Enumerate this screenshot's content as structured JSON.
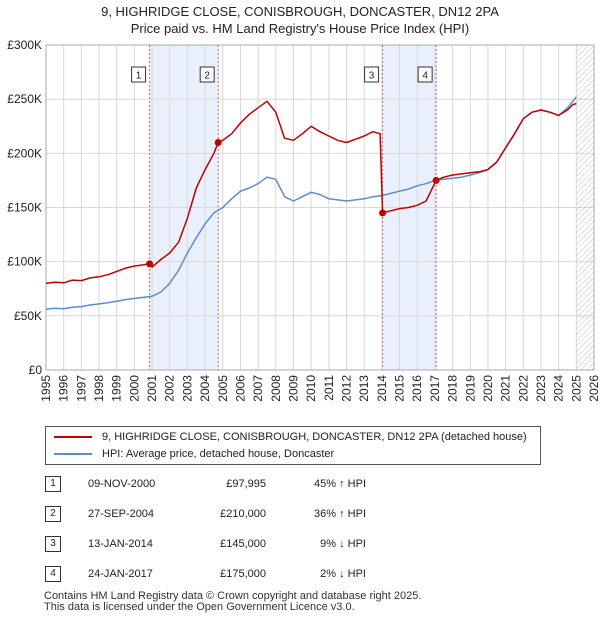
{
  "title": {
    "line1": "9, HIGHRIDGE CLOSE, CONISBROUGH, DONCASTER, DN12 2PA",
    "line2": "Price paid vs. HM Land Registry's House Price Index (HPI)"
  },
  "colors": {
    "property_line": "#c00000",
    "hpi_line": "#5b8ccc",
    "shade": "#eaf0fb",
    "vline": "#e06060",
    "grid": "#d8d8d8"
  },
  "chart_data": {
    "type": "line",
    "xlabel": "",
    "ylabel": "",
    "xlim": [
      1995,
      2026
    ],
    "ylim": [
      0,
      300000
    ],
    "x_ticks": [
      "1995",
      "1996",
      "1997",
      "1998",
      "1999",
      "2000",
      "2001",
      "2002",
      "2003",
      "2004",
      "2005",
      "2006",
      "2007",
      "2008",
      "2009",
      "2010",
      "2011",
      "2012",
      "2013",
      "2014",
      "2015",
      "2016",
      "2017",
      "2018",
      "2019",
      "2020",
      "2021",
      "2022",
      "2023",
      "2024",
      "2025",
      "2026"
    ],
    "y_ticks": [
      {
        "value": 0,
        "label": "£0"
      },
      {
        "value": 50000,
        "label": "£50K"
      },
      {
        "value": 100000,
        "label": "£100K"
      },
      {
        "value": 150000,
        "label": "£150K"
      },
      {
        "value": 200000,
        "label": "£200K"
      },
      {
        "value": 250000,
        "label": "£250K"
      },
      {
        "value": 300000,
        "label": "£300K"
      }
    ],
    "grid": true,
    "shaded_ranges": [
      [
        2000.86,
        2004.74
      ],
      [
        2014.04,
        2017.07
      ]
    ],
    "hatched_from": 2025.0,
    "series": [
      {
        "name": "9, HIGHRIDGE CLOSE, CONISBROUGH, DONCASTER, DN12 2PA (detached house)",
        "x": [
          1995.0,
          1995.5,
          1996.0,
          1996.5,
          1997.0,
          1997.5,
          1998.0,
          1998.5,
          1999.0,
          1999.5,
          2000.0,
          2000.5,
          2000.86,
          2001.0,
          2001.5,
          2002.0,
          2002.5,
          2003.0,
          2003.5,
          2004.0,
          2004.5,
          2004.74,
          2005.0,
          2005.5,
          2006.0,
          2006.5,
          2007.0,
          2007.5,
          2008.0,
          2008.5,
          2009.0,
          2009.5,
          2010.0,
          2010.5,
          2011.0,
          2011.5,
          2012.0,
          2012.5,
          2013.0,
          2013.5,
          2013.9,
          2014.04,
          2014.5,
          2015.0,
          2015.5,
          2016.0,
          2016.5,
          2017.07,
          2017.5,
          2018.0,
          2018.5,
          2019.0,
          2019.5,
          2020.0,
          2020.5,
          2021.0,
          2021.5,
          2022.0,
          2022.5,
          2023.0,
          2023.5,
          2024.0,
          2024.5,
          2024.8,
          2025.0
        ],
        "values": [
          80000,
          81000,
          80500,
          83000,
          82500,
          85000,
          86000,
          88000,
          91000,
          94000,
          96000,
          97000,
          97995,
          95000,
          102000,
          108000,
          118000,
          140000,
          168000,
          185000,
          200000,
          210000,
          212000,
          218000,
          228000,
          236000,
          242000,
          248000,
          238000,
          214000,
          212000,
          218000,
          225000,
          220000,
          216000,
          212000,
          210000,
          213000,
          216000,
          220000,
          218000,
          145000,
          147000,
          149000,
          150000,
          152000,
          156000,
          175000,
          178000,
          180000,
          181000,
          182000,
          183000,
          185000,
          192000,
          205000,
          218000,
          232000,
          238000,
          240000,
          238000,
          235000,
          240000,
          245000,
          246000
        ]
      },
      {
        "name": "HPI: Average price, detached house, Doncaster",
        "x": [
          1995.0,
          1995.5,
          1996.0,
          1996.5,
          1997.0,
          1997.5,
          1998.0,
          1998.5,
          1999.0,
          1999.5,
          2000.0,
          2000.5,
          2001.0,
          2001.5,
          2002.0,
          2002.5,
          2003.0,
          2003.5,
          2004.0,
          2004.5,
          2005.0,
          2005.5,
          2006.0,
          2006.5,
          2007.0,
          2007.5,
          2008.0,
          2008.5,
          2009.0,
          2009.5,
          2010.0,
          2010.5,
          2011.0,
          2011.5,
          2012.0,
          2012.5,
          2013.0,
          2013.5,
          2014.0,
          2014.5,
          2015.0,
          2015.5,
          2016.0,
          2016.5,
          2017.0,
          2017.5,
          2018.0,
          2018.5,
          2019.0,
          2019.5,
          2020.0,
          2020.5,
          2021.0,
          2021.5,
          2022.0,
          2022.5,
          2023.0,
          2023.5,
          2024.0,
          2024.5,
          2025.0
        ],
        "values": [
          56000,
          57000,
          56500,
          58000,
          58500,
          60000,
          61000,
          62000,
          63500,
          65000,
          66000,
          67000,
          68000,
          72000,
          80000,
          92000,
          108000,
          122000,
          135000,
          145000,
          150000,
          158000,
          165000,
          168000,
          172000,
          178000,
          176000,
          160000,
          156000,
          160000,
          164000,
          162000,
          158000,
          157000,
          156000,
          157000,
          158000,
          160000,
          161000,
          163000,
          165000,
          167000,
          170000,
          172000,
          175000,
          176000,
          177000,
          178000,
          180000,
          182000,
          185000,
          192000,
          205000,
          218000,
          232000,
          238000,
          240000,
          238000,
          235000,
          242000,
          252000
        ]
      }
    ],
    "markers": [
      {
        "label": "1",
        "x": 2000.86,
        "y": 97995
      },
      {
        "label": "2",
        "x": 2004.74,
        "y": 210000
      },
      {
        "label": "3",
        "x": 2014.04,
        "y": 145000
      },
      {
        "label": "4",
        "x": 2017.07,
        "y": 175000
      }
    ]
  },
  "legend": {
    "property": "9, HIGHRIDGE CLOSE, CONISBROUGH, DONCASTER, DN12 2PA (detached house)",
    "hpi": "HPI: Average price, detached house, Doncaster"
  },
  "transactions": [
    {
      "id": "1",
      "date": "09-NOV-2000",
      "price": "£97,995",
      "hpi": "45% ↑ HPI"
    },
    {
      "id": "2",
      "date": "27-SEP-2004",
      "price": "£210,000",
      "hpi": "36% ↑ HPI"
    },
    {
      "id": "3",
      "date": "13-JAN-2014",
      "price": "£145,000",
      "hpi": "9% ↓ HPI"
    },
    {
      "id": "4",
      "date": "24-JAN-2017",
      "price": "£175,000",
      "hpi": "2% ↓ HPI"
    }
  ],
  "footer": {
    "line1": "Contains HM Land Registry data © Crown copyright and database right 2025.",
    "line2": "This data is licensed under the Open Government Licence v3.0."
  }
}
